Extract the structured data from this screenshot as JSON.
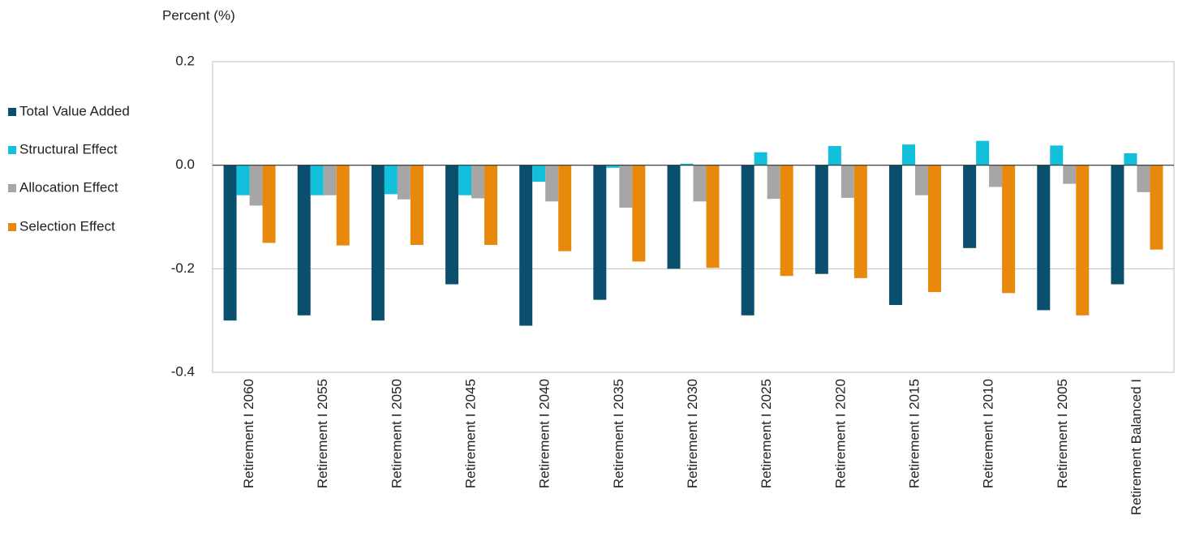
{
  "chart_data": {
    "type": "bar",
    "y_label": "Percent (%)",
    "categories": [
      "Retirement I 2060",
      "Retirement I 2055",
      "Retirement I 2050",
      "Retirement I 2045",
      "Retirement I 2040",
      "Retirement I 2035",
      "Retirement I 2030",
      "Retirement I 2025",
      "Retirement I 2020",
      "Retirement I 2015",
      "Retirement I 2010",
      "Retirement I 2005",
      "Retirement Balanced I"
    ],
    "series": [
      {
        "name": "Total Value Added",
        "color": "#0b4f6f",
        "values": [
          -0.3,
          -0.29,
          -0.3,
          -0.23,
          -0.31,
          -0.26,
          -0.2,
          -0.29,
          -0.21,
          -0.27,
          -0.16,
          -0.28,
          -0.23
        ]
      },
      {
        "name": "Structural Effect",
        "color": "#12c0dc",
        "values": [
          -0.058,
          -0.058,
          -0.056,
          -0.058,
          -0.032,
          -0.005,
          0.003,
          0.025,
          0.037,
          0.04,
          0.047,
          0.038,
          0.023
        ]
      },
      {
        "name": "Allocation Effect",
        "color": "#a6a6a6",
        "values": [
          -0.078,
          -0.058,
          -0.066,
          -0.064,
          -0.07,
          -0.082,
          -0.07,
          -0.065,
          -0.063,
          -0.058,
          -0.042,
          -0.036,
          -0.052
        ]
      },
      {
        "name": "Selection Effect",
        "color": "#e8890c",
        "values": [
          -0.15,
          -0.155,
          -0.154,
          -0.154,
          -0.166,
          -0.186,
          -0.198,
          -0.214,
          -0.218,
          -0.245,
          -0.247,
          -0.29,
          -0.163
        ]
      }
    ],
    "ylim": [
      -0.4,
      0.2
    ],
    "yticks": [
      -0.4,
      -0.2,
      {
        "value": 0,
        "label": "0.0"
      },
      0.2
    ],
    "grid": true,
    "legend": "left"
  }
}
